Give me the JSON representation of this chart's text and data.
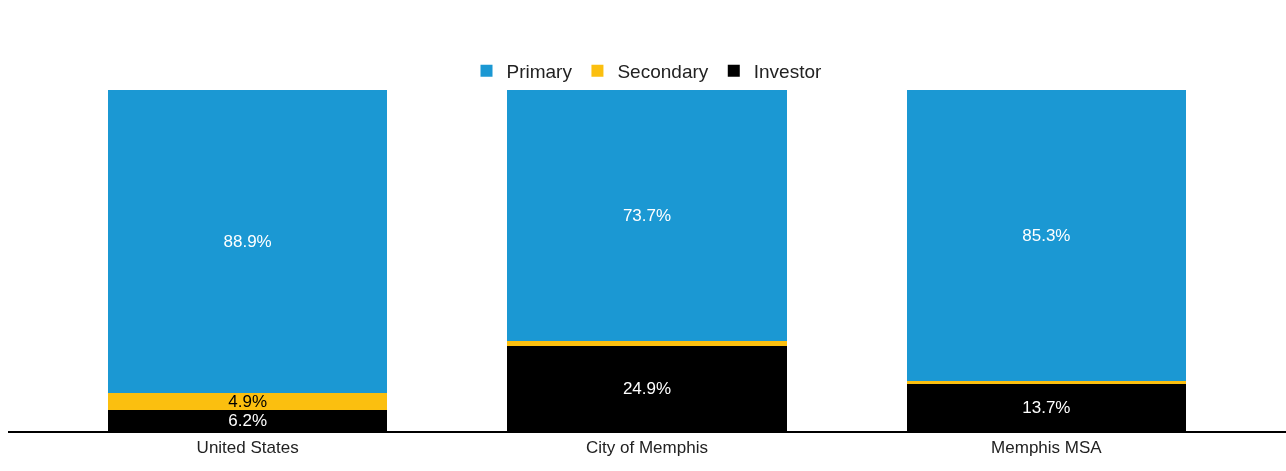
{
  "chart_data": {
    "type": "bar",
    "stacked": true,
    "legend": "top",
    "categories": [
      "United States",
      "City of Memphis",
      "Memphis MSA"
    ],
    "series": [
      {
        "name": "Investor",
        "color": "#000000",
        "values": [
          6.2,
          24.9,
          13.7
        ],
        "value_labels": [
          "6.2%",
          "24.9%",
          "13.7%"
        ]
      },
      {
        "name": "Secondary",
        "color": "#fbbf0f",
        "values": [
          4.9,
          1.4,
          1.0
        ],
        "value_labels": [
          "4.9%",
          null,
          null
        ]
      },
      {
        "name": "Primary",
        "color": "#1b98d3",
        "values": [
          88.9,
          73.7,
          85.3
        ],
        "value_labels": [
          "88.9%",
          "73.7%",
          "85.3%"
        ]
      }
    ]
  }
}
